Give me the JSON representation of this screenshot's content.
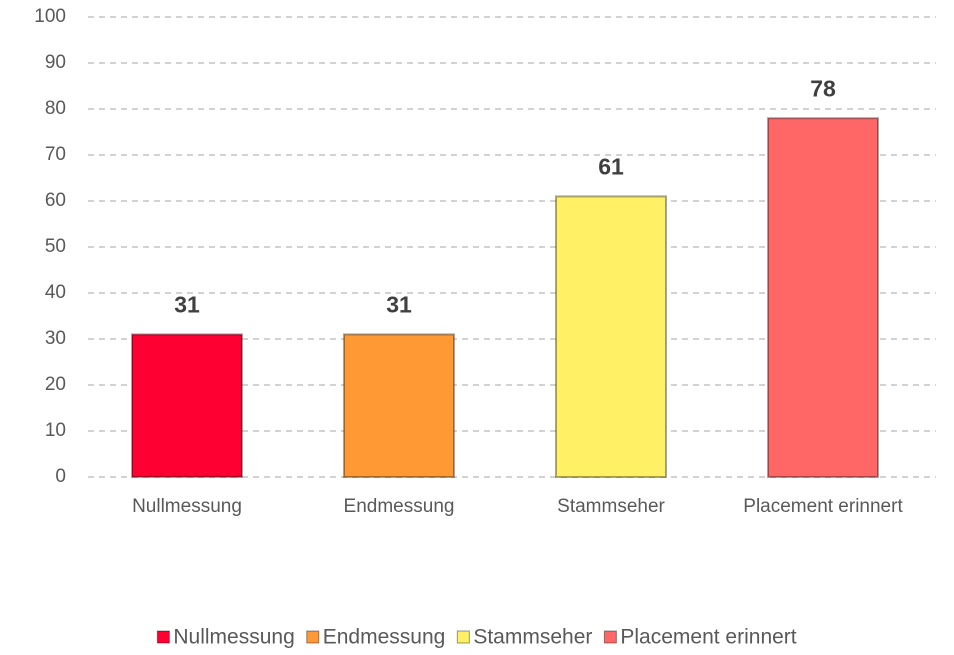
{
  "chart_data": {
    "type": "bar",
    "categories": [
      "Nullmessung",
      "Endmessung",
      "Stammseher",
      "Placement erinnert"
    ],
    "values": [
      31,
      31,
      61,
      78
    ],
    "colors": [
      "#ff0033",
      "#ff9933",
      "#fff066",
      "#ff6666"
    ],
    "ylim": [
      0,
      100
    ],
    "yticks": [
      0,
      10,
      20,
      30,
      40,
      50,
      60,
      70,
      80,
      90,
      100
    ],
    "grid": true,
    "legend": "bottom"
  }
}
